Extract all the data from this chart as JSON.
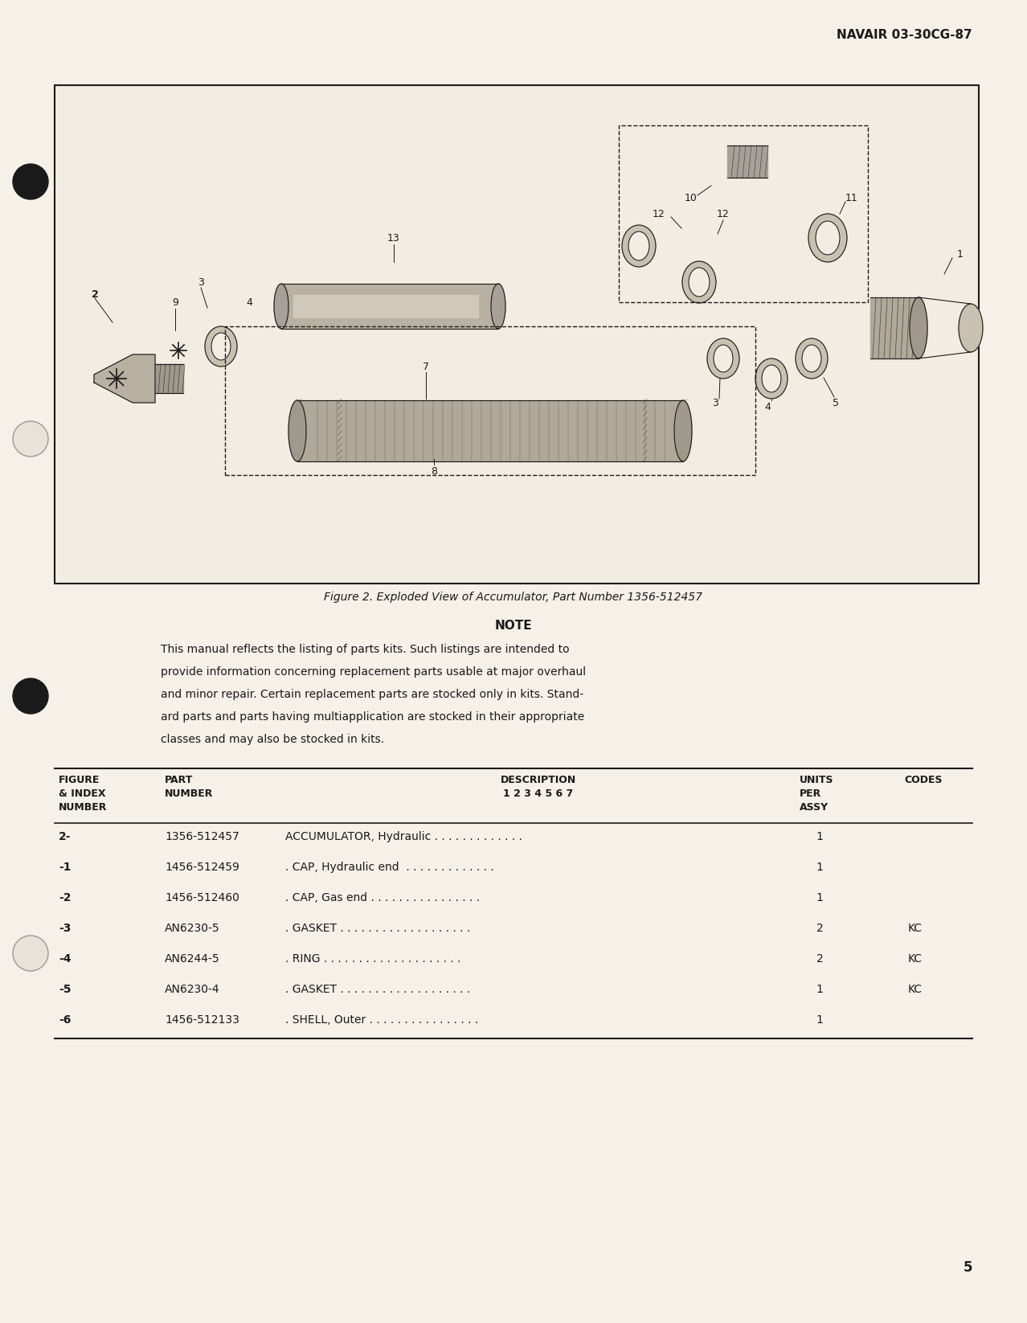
{
  "bg_color": "#f5f0e8",
  "page_color": "#f0ebe0",
  "header_text": "NAVAIR 03-30CG-87",
  "page_number": "5",
  "figure_caption": "Figure 2. Exploded View of Accumulator, Part Number 1356-512457",
  "note_title": "NOTE",
  "note_body": "This manual reflects the listing of parts kits. Such listings are intended to\nprovide information concerning replacement parts usable at major overhaul\nand minor repair. Certain replacement parts are stocked only in kits. Stand-\nard parts and parts having multiapplication are stocked in their appropriate\nclasses and may also be stocked in kits.",
  "table_headers": [
    "FIGURE\n& INDEX\nNUMBER",
    "PART\nNUMBER",
    "DESCRIPTION\n1 2 3 4 5 6 7",
    "UNITS\nPER\nASSY",
    "CODES"
  ],
  "table_rows": [
    [
      "2-",
      "1356-512457",
      "ACCUMULATOR, Hydraulic . . . . . . . . . . . . .",
      "1",
      ""
    ],
    [
      "-1",
      "1456-512459",
      ". CAP, Hydraulic end  . . . . . . . . . . . . .",
      "1",
      ""
    ],
    [
      "-2",
      "1456-512460",
      ". CAP, Gas end . . . . . . . . . . . . . . . .",
      "1",
      ""
    ],
    [
      "-3",
      "AN6230-5",
      ". GASKET . . . . . . . . . . . . . . . . . . .",
      "2",
      "KC"
    ],
    [
      "-4",
      "AN6244-5",
      ". RING . . . . . . . . . . . . . . . . . . . .",
      "2",
      "KC"
    ],
    [
      "-5",
      "AN6230-4",
      ". GASKET . . . . . . . . . . . . . . . . . . .",
      "1",
      "KC"
    ],
    [
      "-6",
      "1456-512133",
      ". SHELL, Outer . . . . . . . . . . . . . . . .",
      "1",
      ""
    ]
  ],
  "text_color": "#1a1a1a",
  "line_color": "#1a1a1a"
}
